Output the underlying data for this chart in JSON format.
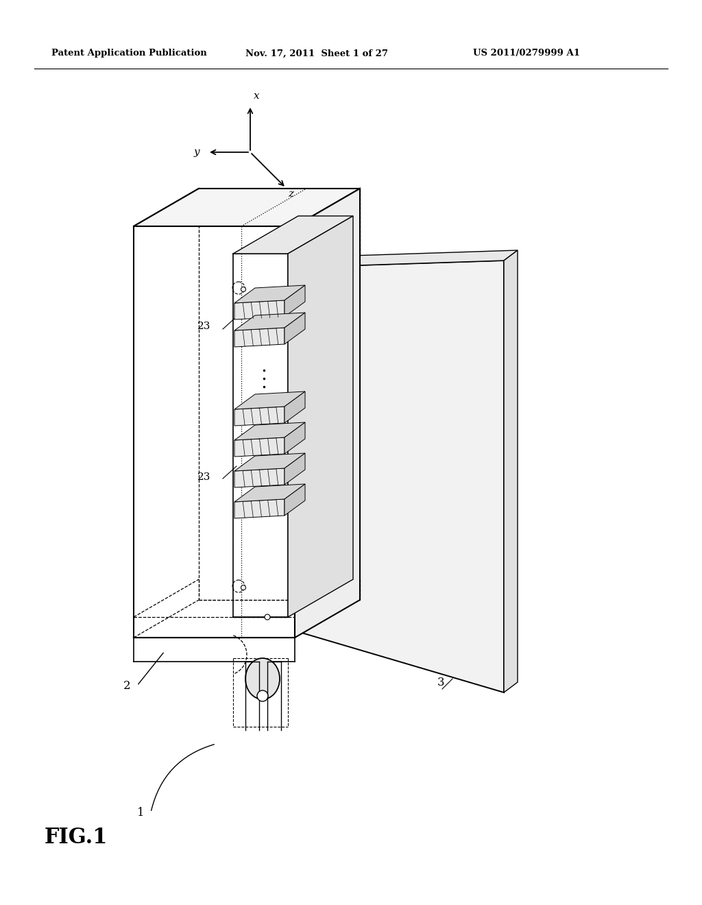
{
  "background_color": "#ffffff",
  "header_left": "Patent Application Publication",
  "header_mid": "Nov. 17, 2011  Sheet 1 of 27",
  "header_right": "US 2011/0279999 A1",
  "fig_label": "FIG.1",
  "ref_1": "1",
  "ref_2": "2",
  "ref_3": "3",
  "ref_23a": "23",
  "ref_23b": "23",
  "axis_x": "x",
  "axis_y": "y",
  "axis_z": "z"
}
